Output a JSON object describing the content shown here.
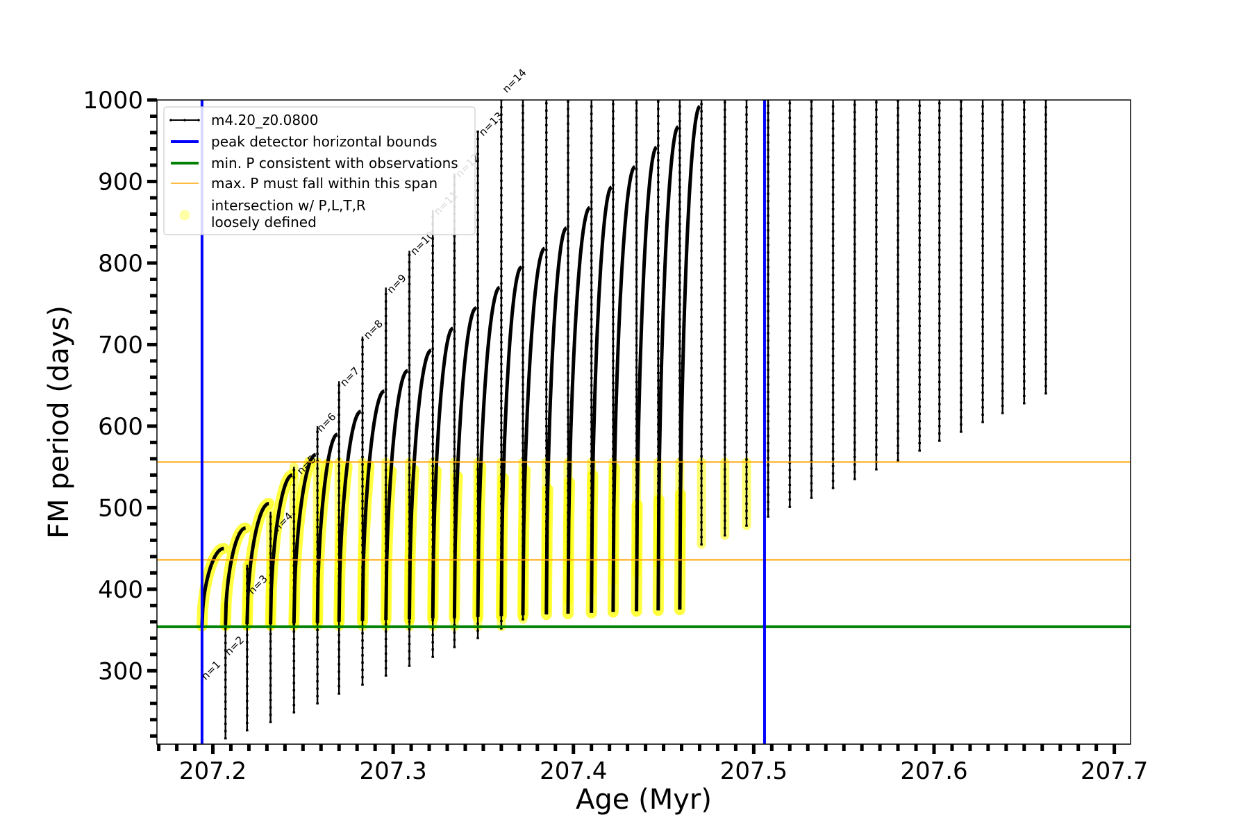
{
  "chart_data": {
    "type": "line",
    "title": "",
    "xlabel": "Age (Myr)",
    "ylabel": "FM period (days)",
    "xlim": [
      207.169,
      207.709
    ],
    "ylim": [
      210,
      1000
    ],
    "x_ticks": [
      "207.2",
      "207.3",
      "207.4",
      "207.5",
      "207.6",
      "207.7"
    ],
    "x_tick_values": [
      207.2,
      207.3,
      207.4,
      207.5,
      207.6,
      207.7
    ],
    "y_ticks": [
      "300",
      "400",
      "500",
      "600",
      "700",
      "800",
      "900",
      "1000"
    ],
    "y_tick_values": [
      300,
      400,
      500,
      600,
      700,
      800,
      900,
      1000
    ],
    "grid": false,
    "legend_position": "top-left",
    "legend": [
      {
        "label": "m4.20_z0.0800",
        "style": "line-marker",
        "color": "#000000"
      },
      {
        "label": "peak detector horizontal bounds",
        "style": "line",
        "color": "#0000ff"
      },
      {
        "label": "min. P consistent with observations",
        "style": "line",
        "color": "#008000"
      },
      {
        "label": "max. P must fall within this span",
        "style": "line",
        "color": "#ffa500"
      },
      {
        "label": "intersection w/ P,L,T,R\nloosely defined",
        "style": "marker",
        "color": "#ffff00"
      }
    ],
    "vertical_lines": [
      207.194,
      207.506
    ],
    "min_period": 354,
    "max_period_span": [
      436,
      556
    ],
    "series_name": "m4.20_z0.0800",
    "pulse_cycles": [
      {
        "x": 207.194,
        "y_peak": 350,
        "y_min": 215
      },
      {
        "x": 207.207,
        "y_peak": 380,
        "y_min": 217
      },
      {
        "x": 207.219,
        "y_peak": 430,
        "y_min": 227
      },
      {
        "x": 207.232,
        "y_peak": 495,
        "y_min": 237
      },
      {
        "x": 207.245,
        "y_peak": 550,
        "y_min": 249
      },
      {
        "x": 207.258,
        "y_peak": 600,
        "y_min": 260
      },
      {
        "x": 207.27,
        "y_peak": 655,
        "y_min": 272
      },
      {
        "x": 207.283,
        "y_peak": 710,
        "y_min": 283
      },
      {
        "x": 207.296,
        "y_peak": 770,
        "y_min": 294
      },
      {
        "x": 207.309,
        "y_peak": 815,
        "y_min": 306
      },
      {
        "x": 207.322,
        "y_peak": 865,
        "y_min": 317
      },
      {
        "x": 207.334,
        "y_peak": 910,
        "y_min": 329
      },
      {
        "x": 207.347,
        "y_peak": 962,
        "y_min": 340
      },
      {
        "x": 207.36,
        "y_peak": 1000,
        "y_min": 352
      },
      {
        "x": 207.372,
        "y_peak": 1000,
        "y_min": 363
      },
      {
        "x": 207.385,
        "y_peak": 1000,
        "y_min": 375
      },
      {
        "x": 207.397,
        "y_peak": 1000,
        "y_min": 386
      },
      {
        "x": 207.41,
        "y_peak": 1000,
        "y_min": 398
      },
      {
        "x": 207.422,
        "y_peak": 1000,
        "y_min": 410
      },
      {
        "x": 207.435,
        "y_peak": 1000,
        "y_min": 420
      },
      {
        "x": 207.447,
        "y_peak": 1000,
        "y_min": 431
      },
      {
        "x": 207.459,
        "y_peak": 1000,
        "y_min": 443
      },
      {
        "x": 207.471,
        "y_peak": 1000,
        "y_min": 455
      },
      {
        "x": 207.484,
        "y_peak": 1000,
        "y_min": 466
      },
      {
        "x": 207.496,
        "y_peak": 1000,
        "y_min": 478
      },
      {
        "x": 207.508,
        "y_peak": 1000,
        "y_min": 489
      },
      {
        "x": 207.52,
        "y_peak": 1000,
        "y_min": 501
      },
      {
        "x": 207.532,
        "y_peak": 1000,
        "y_min": 512
      },
      {
        "x": 207.544,
        "y_peak": 1000,
        "y_min": 524
      },
      {
        "x": 207.556,
        "y_peak": 1000,
        "y_min": 535
      },
      {
        "x": 207.568,
        "y_peak": 1000,
        "y_min": 547
      },
      {
        "x": 207.58,
        "y_peak": 1000,
        "y_min": 558
      },
      {
        "x": 207.592,
        "y_peak": 1000,
        "y_min": 570
      },
      {
        "x": 207.603,
        "y_peak": 1000,
        "y_min": 582
      },
      {
        "x": 207.615,
        "y_peak": 1000,
        "y_min": 593
      },
      {
        "x": 207.627,
        "y_peak": 1000,
        "y_min": 605
      },
      {
        "x": 207.638,
        "y_peak": 1000,
        "y_min": 616
      },
      {
        "x": 207.65,
        "y_peak": 1000,
        "y_min": 628
      },
      {
        "x": 207.662,
        "y_peak": 1000,
        "y_min": 640
      }
    ],
    "interpulse_arcs": [
      {
        "x_start": 207.194,
        "x_end": 207.207,
        "y_start": 355,
        "y_end": 450
      },
      {
        "x_start": 207.207,
        "x_end": 207.219,
        "y_start": 356,
        "y_end": 475
      },
      {
        "x_start": 207.219,
        "x_end": 207.232,
        "y_start": 357,
        "y_end": 505
      },
      {
        "x_start": 207.232,
        "x_end": 207.245,
        "y_start": 357,
        "y_end": 540
      },
      {
        "x_start": 207.245,
        "x_end": 207.258,
        "y_start": 358,
        "y_end": 565
      },
      {
        "x_start": 207.258,
        "x_end": 207.27,
        "y_start": 359,
        "y_end": 590
      },
      {
        "x_start": 207.27,
        "x_end": 207.283,
        "y_start": 360,
        "y_end": 618
      },
      {
        "x_start": 207.283,
        "x_end": 207.296,
        "y_start": 361,
        "y_end": 643
      },
      {
        "x_start": 207.296,
        "x_end": 207.309,
        "y_start": 362,
        "y_end": 668
      },
      {
        "x_start": 207.309,
        "x_end": 207.322,
        "y_start": 363,
        "y_end": 693
      },
      {
        "x_start": 207.322,
        "x_end": 207.334,
        "y_start": 364,
        "y_end": 720
      },
      {
        "x_start": 207.334,
        "x_end": 207.347,
        "y_start": 365,
        "y_end": 745
      },
      {
        "x_start": 207.347,
        "x_end": 207.36,
        "y_start": 366,
        "y_end": 770
      },
      {
        "x_start": 207.36,
        "x_end": 207.372,
        "y_start": 367,
        "y_end": 795
      },
      {
        "x_start": 207.372,
        "x_end": 207.385,
        "y_start": 368,
        "y_end": 818
      },
      {
        "x_start": 207.385,
        "x_end": 207.397,
        "y_start": 369,
        "y_end": 843
      },
      {
        "x_start": 207.397,
        "x_end": 207.41,
        "y_start": 370,
        "y_end": 868
      },
      {
        "x_start": 207.41,
        "x_end": 207.422,
        "y_start": 371,
        "y_end": 893
      },
      {
        "x_start": 207.422,
        "x_end": 207.435,
        "y_start": 372,
        "y_end": 918
      },
      {
        "x_start": 207.435,
        "x_end": 207.447,
        "y_start": 373,
        "y_end": 942
      },
      {
        "x_start": 207.447,
        "x_end": 207.459,
        "y_start": 374,
        "y_end": 967
      },
      {
        "x_start": 207.459,
        "x_end": 207.471,
        "y_start": 375,
        "y_end": 992
      }
    ],
    "annotations": [
      {
        "text": "n=1",
        "x": 207.196,
        "y": 288
      },
      {
        "text": "n=2",
        "x": 207.209,
        "y": 318
      },
      {
        "text": "n=3",
        "x": 207.222,
        "y": 393
      },
      {
        "text": "n=4",
        "x": 207.236,
        "y": 470
      },
      {
        "text": "n=5",
        "x": 207.249,
        "y": 540
      },
      {
        "text": "n=6",
        "x": 207.26,
        "y": 592
      },
      {
        "text": "n=7",
        "x": 207.273,
        "y": 648
      },
      {
        "text": "n=8",
        "x": 207.286,
        "y": 706
      },
      {
        "text": "n=9",
        "x": 207.299,
        "y": 762
      },
      {
        "text": "n=10",
        "x": 207.312,
        "y": 809
      },
      {
        "text": "n=11",
        "x": 207.325,
        "y": 858
      },
      {
        "text": "n=12",
        "x": 207.337,
        "y": 904
      },
      {
        "text": "n=13",
        "x": 207.35,
        "y": 955
      },
      {
        "text": "n=14",
        "x": 207.363,
        "y": 1008
      }
    ]
  }
}
